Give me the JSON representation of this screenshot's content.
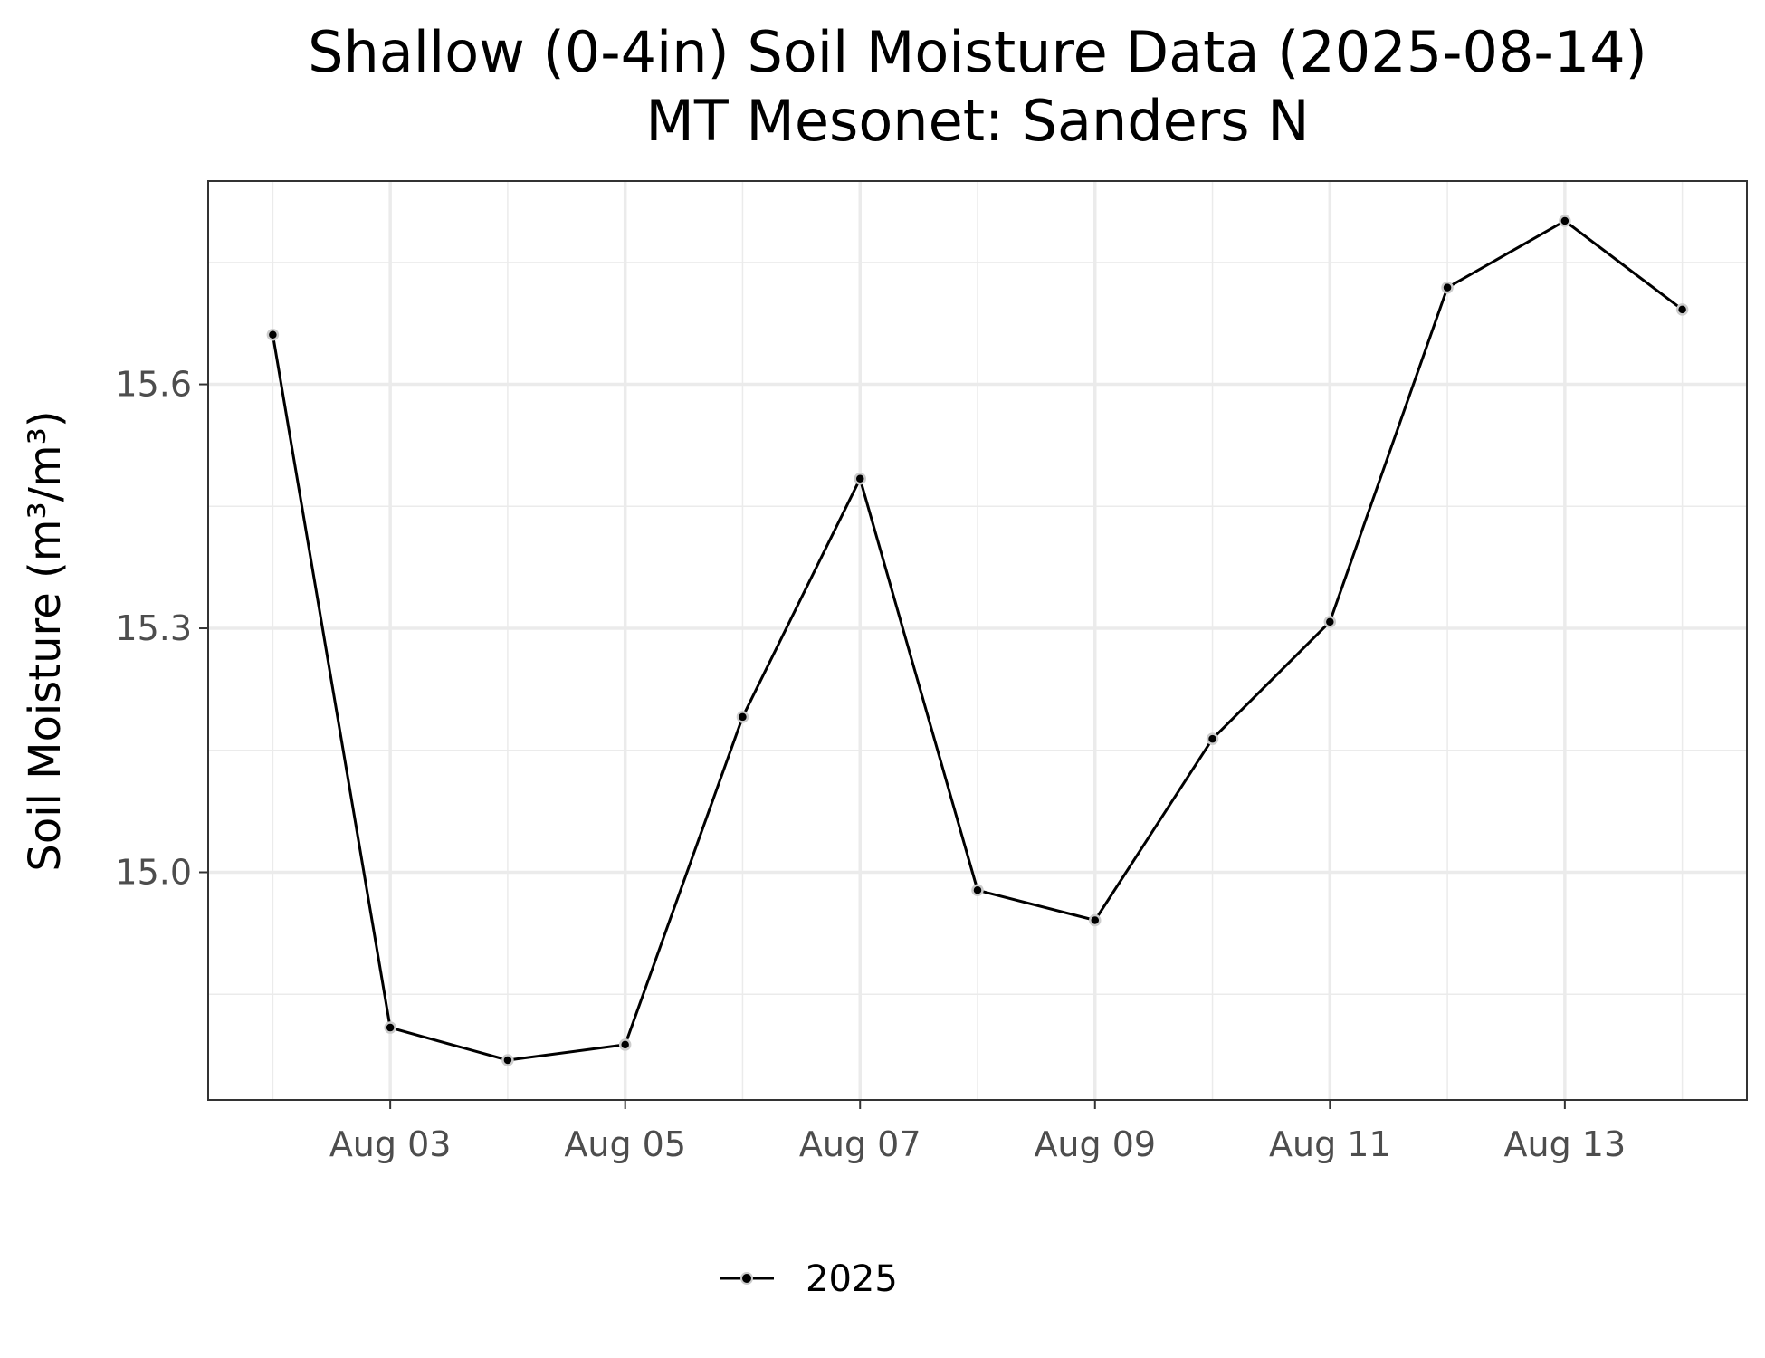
{
  "chart_data": {
    "type": "line",
    "title": "Shallow (0-4in) Soil Moisture Data (2025-08-14)",
    "subtitle": "MT Mesonet: Sanders N",
    "xlabel": "",
    "ylabel": "Soil Moisture (m³/m³)",
    "x": [
      "2025-08-02",
      "2025-08-03",
      "2025-08-04",
      "2025-08-05",
      "2025-08-06",
      "2025-08-07",
      "2025-08-08",
      "2025-08-09",
      "2025-08-10",
      "2025-08-11",
      "2025-08-12",
      "2025-08-13",
      "2025-08-14"
    ],
    "xlim": [
      "2025-08-01T10:48",
      "2025-08-14T13:12"
    ],
    "x_ticks": [
      "2025-08-03",
      "2025-08-05",
      "2025-08-07",
      "2025-08-09",
      "2025-08-11",
      "2025-08-13"
    ],
    "x_tick_labels": [
      "Aug 03",
      "Aug 05",
      "Aug 07",
      "Aug 09",
      "Aug 11",
      "Aug 13"
    ],
    "ylim": [
      14.72,
      15.85
    ],
    "y_ticks": [
      15.0,
      15.3,
      15.6
    ],
    "y_tick_labels": [
      "15.0",
      "15.3",
      "15.6"
    ],
    "y_minor_ticks": [
      14.85,
      15.15,
      15.45,
      15.75
    ],
    "grid": true,
    "legend_position": "bottom",
    "series": [
      {
        "name": "2025",
        "color": "#000000",
        "values": [
          15.661,
          14.809,
          14.769,
          14.788,
          15.191,
          15.484,
          14.978,
          14.941,
          15.164,
          15.308,
          15.719,
          15.801,
          15.692
        ]
      }
    ]
  }
}
